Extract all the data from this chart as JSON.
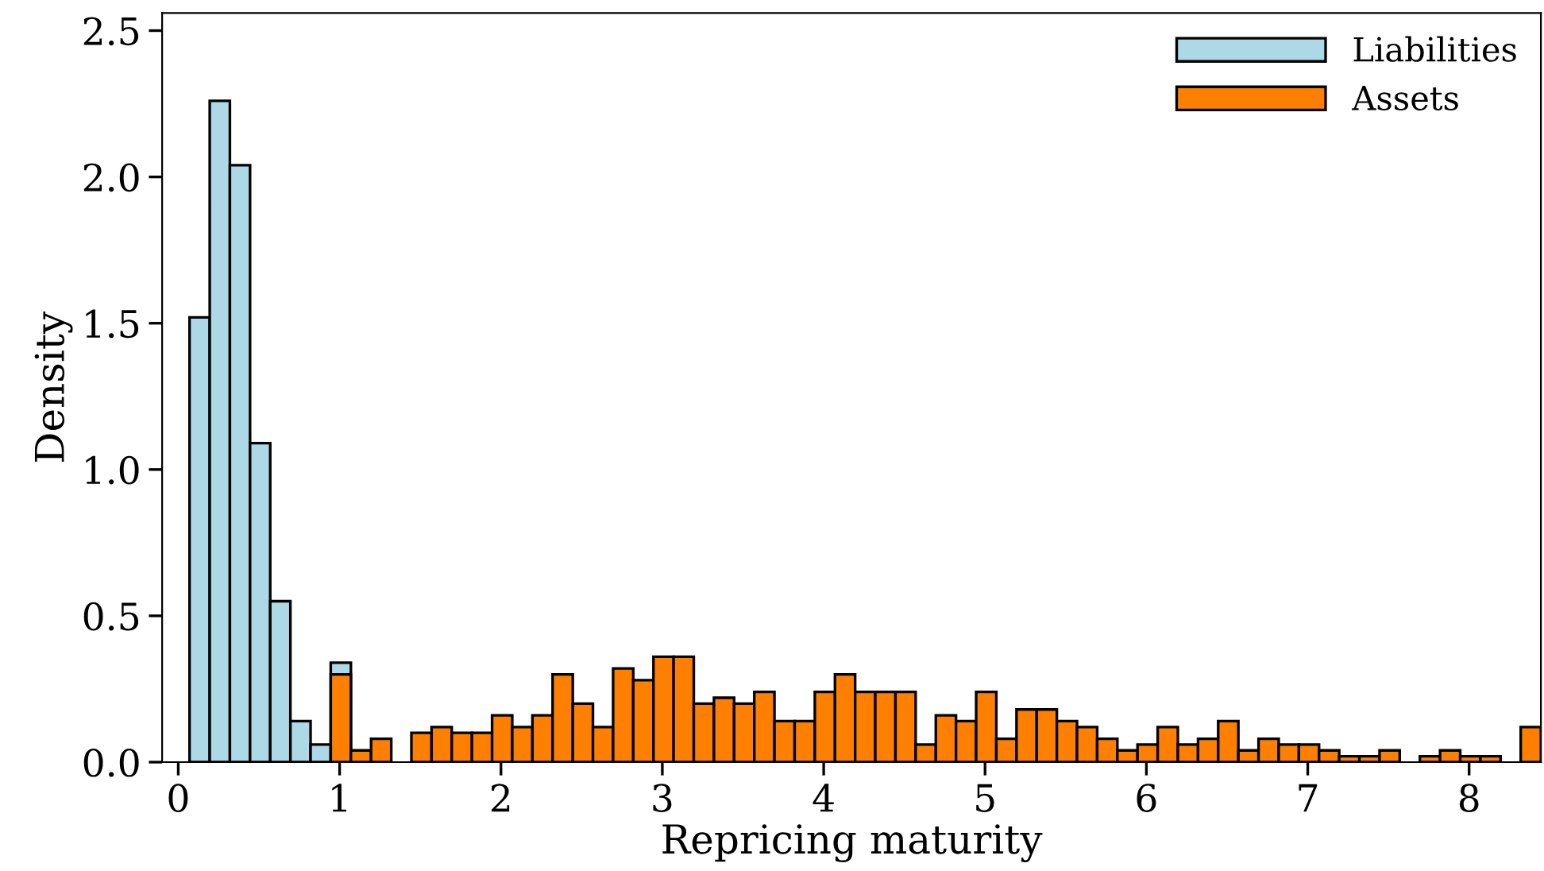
{
  "chart_data": {
    "type": "histogram",
    "xlabel": "Repricing maturity",
    "ylabel": "Density",
    "bins": [
      0.07,
      0.195,
      0.32,
      0.445,
      0.57,
      0.695,
      0.82,
      0.945,
      1.07,
      1.195,
      1.32,
      1.445,
      1.57,
      1.695,
      1.82,
      1.945,
      2.07,
      2.195,
      2.32,
      2.445,
      2.57,
      2.695,
      2.82,
      2.945,
      3.07,
      3.195,
      3.32,
      3.445,
      3.57,
      3.695,
      3.82,
      3.945,
      4.07,
      4.195,
      4.32,
      4.445,
      4.57,
      4.695,
      4.82,
      4.945,
      5.07,
      5.195,
      5.32,
      5.445,
      5.57,
      5.695,
      5.82,
      5.945,
      6.07,
      6.195,
      6.32,
      6.445,
      6.57,
      6.695,
      6.82,
      6.945,
      7.07,
      7.195,
      7.32,
      7.445,
      7.57,
      7.695,
      7.82,
      7.945,
      8.07,
      8.195,
      8.32,
      8.445
    ],
    "series": [
      {
        "name": "Liabilities",
        "color": "#add8e6",
        "values": [
          1.52,
          2.26,
          2.04,
          1.09,
          0.55,
          0.14,
          0.06,
          0.34,
          null,
          null,
          null,
          null,
          null,
          null,
          null,
          null,
          null,
          null,
          null,
          null,
          null,
          null,
          null,
          null,
          null,
          null,
          null,
          null,
          null,
          null,
          null,
          null,
          null,
          null,
          null,
          null,
          null,
          null,
          null,
          null,
          null,
          null,
          null,
          null,
          null,
          null,
          null,
          null,
          null,
          null,
          null,
          null,
          null,
          null,
          null,
          null,
          null,
          null,
          null,
          null,
          null,
          null,
          null,
          null,
          null,
          null,
          null
        ]
      },
      {
        "name": "Assets",
        "color": "#ff8000",
        "values": [
          null,
          null,
          null,
          null,
          null,
          null,
          null,
          0.3,
          0.04,
          0.08,
          0,
          0.1,
          0.12,
          0.1,
          0.1,
          0.16,
          0.12,
          0.16,
          0.3,
          0.2,
          0.12,
          0.32,
          0.28,
          0.36,
          0.36,
          0.2,
          0.22,
          0.2,
          0.24,
          0.14,
          0.14,
          0.24,
          0.3,
          0.24,
          0.24,
          0.24,
          0.06,
          0.16,
          0.14,
          0.24,
          0.08,
          0.18,
          0.18,
          0.14,
          0.12,
          0.08,
          0.04,
          0.06,
          0.12,
          0.06,
          0.08,
          0.14,
          0.04,
          0.08,
          0.06,
          0.06,
          0.04,
          0.02,
          0.02,
          0.04,
          0,
          0.02,
          0.04,
          0.02,
          0.02,
          0,
          0.12
        ]
      }
    ],
    "xlim": [
      -0.1,
      8.445
    ],
    "ylim": [
      0,
      2.56
    ],
    "xticks": [
      0,
      1,
      2,
      3,
      4,
      5,
      6,
      7,
      8
    ],
    "yticks": [
      {
        "value": 0,
        "label": "0.0"
      },
      0.5,
      {
        "value": 1,
        "label": "1.0"
      },
      1.5,
      {
        "value": 2,
        "label": "2.0"
      },
      2.5
    ],
    "legend": "top right"
  }
}
